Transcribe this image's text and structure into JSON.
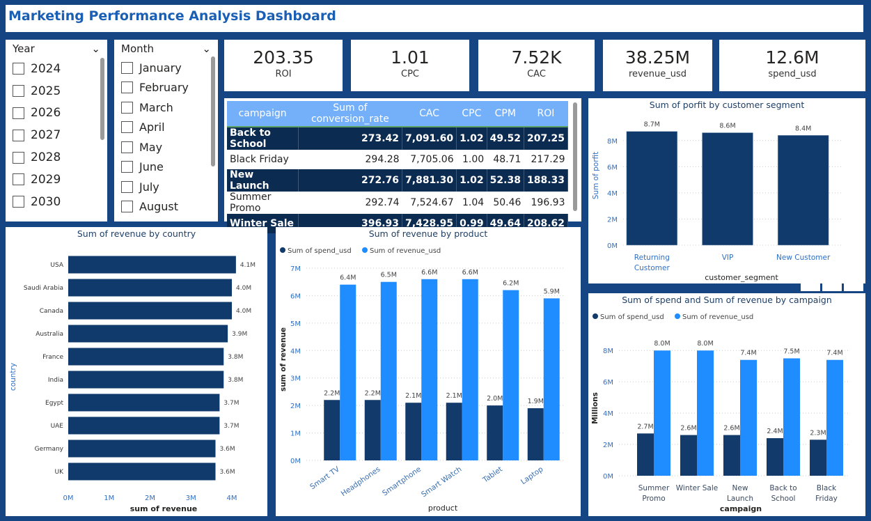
{
  "header": {
    "title": "Marketing Performance Analysis Dashboard"
  },
  "year_slicer": {
    "label": "Year",
    "items": [
      "2024",
      "2025",
      "2026",
      "2027",
      "2028",
      "2029",
      "2030"
    ]
  },
  "month_slicer": {
    "label": "Month",
    "items": [
      "January",
      "February",
      "March",
      "April",
      "May",
      "June",
      "July",
      "August"
    ]
  },
  "kpis": [
    {
      "value": "203.35",
      "label": "ROI"
    },
    {
      "value": "1.01",
      "label": "CPC"
    },
    {
      "value": "7.52K",
      "label": "CAC"
    },
    {
      "value": "38.25M",
      "label": "revenue_usd"
    },
    {
      "value": "12.6M",
      "label": "spend_usd"
    }
  ],
  "table": {
    "columns": [
      "campaign",
      "Sum of conversion_rate",
      "CAC",
      "CPC",
      "CPM",
      "ROI"
    ],
    "rows": [
      [
        "Back to School",
        "273.42",
        "7,091.60",
        "1.02",
        "49.52",
        "207.25"
      ],
      [
        "Black Friday",
        "294.28",
        "7,705.06",
        "1.00",
        "48.71",
        "217.29"
      ],
      [
        "New Launch",
        "272.76",
        "7,881.30",
        "1.02",
        "52.38",
        "188.33"
      ],
      [
        "Summer Promo",
        "292.74",
        "7,524.67",
        "1.04",
        "50.46",
        "196.93"
      ],
      [
        "Winter Sale",
        "396.93",
        "7,428.95",
        "0.99",
        "49.64",
        "208.62"
      ]
    ]
  },
  "colors": {
    "spend": "#123a6b",
    "revenue": "#1f8cff",
    "bar": "#0f3a6b",
    "background": "#164583"
  },
  "chart_data": [
    {
      "id": "profit",
      "type": "bar",
      "title": "Sum of porfit by customer segment",
      "xlabel": "customer_segment",
      "ylabel": "Sum of porfit",
      "categories": [
        "Returning Customer",
        "VIP",
        "New Customer"
      ],
      "series": [
        {
          "values": [
            8.7,
            8.6,
            8.4
          ],
          "labels": [
            "8.7M",
            "8.6M",
            "8.4M"
          ]
        }
      ],
      "ylim": [
        0,
        9
      ],
      "yticks": [
        "0M",
        "2M",
        "4M",
        "6M",
        "8M"
      ],
      "unit": "M",
      "grid": true
    },
    {
      "id": "country",
      "type": "bar",
      "orientation": "horizontal",
      "title": "Sum of revenue by country",
      "xlabel": "sum of revenue",
      "ylabel": "country",
      "categories": [
        "USA",
        "Saudi Arabia",
        "Canada",
        "Australia",
        "France",
        "India",
        "Egypt",
        "UAE",
        "Germany",
        "UK"
      ],
      "series": [
        {
          "values": [
            4.1,
            4.0,
            4.0,
            3.9,
            3.8,
            3.8,
            3.7,
            3.7,
            3.6,
            3.6
          ],
          "labels": [
            "4.1M",
            "4.0M",
            "4.0M",
            "3.9M",
            "3.8M",
            "3.8M",
            "3.7M",
            "3.7M",
            "3.6M",
            "3.6M"
          ]
        }
      ],
      "xlim": [
        0,
        4
      ],
      "xticks": [
        "0M",
        "1M",
        "2M",
        "3M",
        "4M"
      ],
      "grid": false
    },
    {
      "id": "product",
      "type": "bar",
      "title": "Sum of revenue by product",
      "xlabel": "product",
      "ylabel": "sum of revenue",
      "legend": "top-left",
      "categories": [
        "Smart TV",
        "Headphones",
        "Smartphone",
        "Smart Watch",
        "Tablet",
        "Laptop"
      ],
      "series": [
        {
          "name": "Sum of spend_usd",
          "values": [
            2.2,
            2.2,
            2.1,
            2.1,
            2.0,
            1.9
          ],
          "labels": [
            "2.2M",
            "2.2M",
            "2.1M",
            "2.1M",
            "2.0M",
            "1.9M"
          ]
        },
        {
          "name": "Sum of revenue_usd",
          "values": [
            6.4,
            6.5,
            6.6,
            6.6,
            6.2,
            5.9
          ],
          "labels": [
            "6.4M",
            "6.5M",
            "6.6M",
            "6.6M",
            "6.2M",
            "5.9M"
          ]
        }
      ],
      "ylim": [
        0,
        7
      ],
      "yticks": [
        "0M",
        "1M",
        "2M",
        "3M",
        "4M",
        "5M",
        "6M",
        "7M"
      ],
      "grid": true
    },
    {
      "id": "campaign",
      "type": "bar",
      "title": "Sum of spend and Sum of revenue by campaign",
      "xlabel": "campaign",
      "ylabel": "Millions",
      "legend": "top-left",
      "categories": [
        "Summer Promo",
        "Winter Sale",
        "New Launch",
        "Back to School",
        "Black Friday"
      ],
      "series": [
        {
          "name": "Sum of spend_usd",
          "values": [
            2.7,
            2.6,
            2.6,
            2.4,
            2.3
          ],
          "labels": [
            "2.7M",
            "2.6M",
            "2.6M",
            "2.4M",
            "2.3M"
          ]
        },
        {
          "name": "Sum of revenue_usd",
          "values": [
            8.0,
            8.0,
            7.4,
            7.5,
            7.4
          ],
          "labels": [
            "8.0M",
            "8.0M",
            "7.4M",
            "7.5M",
            "7.4M"
          ]
        }
      ],
      "ylim": [
        0,
        8.5
      ],
      "yticks": [
        "0M",
        "2M",
        "4M",
        "6M",
        "8M"
      ],
      "grid": true
    }
  ]
}
